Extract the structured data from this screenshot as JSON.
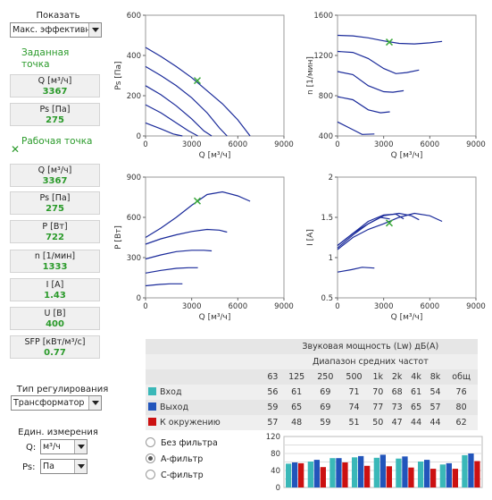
{
  "sidebar": {
    "show_label": "Показать",
    "show_select": "Макс. эффективн",
    "target_point": "Заданная точка",
    "target": [
      {
        "label": "Q [м³/ч]",
        "value": "3367"
      },
      {
        "label": "Ps [Па]",
        "value": "275"
      }
    ],
    "work_point": "Рабочая точка",
    "work_marker": "✕",
    "work": [
      {
        "label": "Q [м³/ч]",
        "value": "3367"
      },
      {
        "label": "Ps [Па]",
        "value": "275"
      },
      {
        "label": "P [Вт]",
        "value": "722"
      },
      {
        "label": "n [1/мин]",
        "value": "1333"
      },
      {
        "label": "I [A]",
        "value": "1.43"
      },
      {
        "label": "U [B]",
        "value": "400"
      },
      {
        "label": "SFP [кВт/м³/с]",
        "value": "0.77"
      }
    ],
    "reg_label": "Тип регулирования",
    "reg_select": "Трансформатор",
    "units_label": "Един. измерения",
    "q_label": "Q:",
    "q_unit": "м³/ч",
    "ps_label": "Ps:",
    "ps_unit": "Па"
  },
  "colors": {
    "curve": "#1a2a9a",
    "marker": "#3aa83a",
    "inlet": "#3ab8b8",
    "outlet": "#2255bb",
    "surround": "#cc1111"
  },
  "chart_data": [
    {
      "type": "line",
      "ylabel": "Ps [Па]",
      "xlabel": "Q [м³/ч]",
      "xlim": [
        0,
        9000
      ],
      "ylim": [
        0,
        600
      ],
      "xticks": [
        "0",
        "3000",
        "6000",
        "9000"
      ],
      "yticks": [
        "0",
        "200",
        "400",
        "600"
      ],
      "series": [
        {
          "x": [
            0,
            1000,
            2000,
            3000,
            4000,
            5000,
            6000,
            6800
          ],
          "y": [
            440,
            395,
            345,
            290,
            225,
            160,
            80,
            0
          ]
        },
        {
          "x": [
            0,
            1000,
            2000,
            3000,
            4000,
            4800,
            5300
          ],
          "y": [
            345,
            300,
            250,
            190,
            115,
            40,
            0
          ]
        },
        {
          "x": [
            0,
            1000,
            2000,
            3000,
            3800,
            4300
          ],
          "y": [
            250,
            205,
            150,
            85,
            25,
            0
          ]
        },
        {
          "x": [
            0,
            1000,
            2000,
            2800,
            3400
          ],
          "y": [
            155,
            115,
            65,
            25,
            0
          ]
        },
        {
          "x": [
            0,
            1000,
            1800,
            2400
          ],
          "y": [
            65,
            35,
            10,
            0
          ]
        }
      ],
      "marker": {
        "x": 3367,
        "y": 275
      }
    },
    {
      "type": "line",
      "ylabel": "n [1/мин]",
      "xlabel": "Q [м³/ч]",
      "xlim": [
        0,
        9000
      ],
      "ylim": [
        400,
        1600
      ],
      "xticks": [
        "0",
        "3000",
        "6000",
        "9000"
      ],
      "yticks": [
        "400",
        "800",
        "1200",
        "1600"
      ],
      "series": [
        {
          "x": [
            0,
            1000,
            2000,
            3000,
            4000,
            5000,
            6000,
            6800
          ],
          "y": [
            1400,
            1395,
            1375,
            1345,
            1320,
            1315,
            1325,
            1340
          ]
        },
        {
          "x": [
            0,
            1000,
            2000,
            3000,
            3800,
            4500,
            5300
          ],
          "y": [
            1240,
            1230,
            1170,
            1070,
            1020,
            1030,
            1055
          ]
        },
        {
          "x": [
            0,
            1000,
            2000,
            3000,
            3600,
            4300
          ],
          "y": [
            1040,
            1010,
            900,
            840,
            835,
            850
          ]
        },
        {
          "x": [
            0,
            1000,
            2000,
            2800,
            3400
          ],
          "y": [
            790,
            760,
            660,
            630,
            640
          ]
        },
        {
          "x": [
            0,
            900,
            1600,
            2400
          ],
          "y": [
            540,
            470,
            415,
            420
          ]
        }
      ],
      "marker": {
        "x": 3367,
        "y": 1333
      }
    },
    {
      "type": "line",
      "ylabel": "P [Вт]",
      "xlabel": "Q [м³/ч]",
      "xlim": [
        0,
        9000
      ],
      "ylim": [
        0,
        900
      ],
      "xticks": [
        "0",
        "3000",
        "6000",
        "9000"
      ],
      "yticks": [
        "0",
        "300",
        "600",
        "900"
      ],
      "series": [
        {
          "x": [
            0,
            1000,
            2000,
            3000,
            4000,
            5000,
            6000,
            6800
          ],
          "y": [
            450,
            520,
            600,
            690,
            770,
            790,
            760,
            720
          ]
        },
        {
          "x": [
            0,
            1000,
            2000,
            3000,
            4000,
            4800,
            5300
          ],
          "y": [
            400,
            440,
            470,
            495,
            510,
            505,
            490
          ]
        },
        {
          "x": [
            0,
            1000,
            2000,
            3000,
            3800,
            4300
          ],
          "y": [
            290,
            320,
            345,
            355,
            355,
            350
          ]
        },
        {
          "x": [
            0,
            1000,
            2000,
            2800,
            3400
          ],
          "y": [
            185,
            205,
            220,
            225,
            225
          ]
        },
        {
          "x": [
            0,
            900,
            1600,
            2400
          ],
          "y": [
            90,
            100,
            105,
            105
          ]
        }
      ],
      "marker": {
        "x": 3367,
        "y": 722
      }
    },
    {
      "type": "line",
      "ylabel": "I [A]",
      "xlabel": "Q [м³/ч]",
      "xlim": [
        0,
        9000
      ],
      "ylim": [
        0.5,
        2
      ],
      "xticks": [
        "0",
        "3000",
        "6000",
        "9000"
      ],
      "yticks": [
        "0.5",
        "1",
        "1.5",
        "2"
      ],
      "series": [
        {
          "x": [
            0,
            1000,
            2000,
            3000,
            4000,
            5000,
            6000,
            6800
          ],
          "y": [
            1.1,
            1.25,
            1.35,
            1.42,
            1.5,
            1.55,
            1.52,
            1.45
          ]
        },
        {
          "x": [
            0,
            1000,
            2000,
            3000,
            4000,
            4800,
            5300
          ],
          "y": [
            1.12,
            1.28,
            1.42,
            1.52,
            1.55,
            1.52,
            1.47
          ]
        },
        {
          "x": [
            0,
            1000,
            2000,
            3000,
            3800,
            4300
          ],
          "y": [
            1.15,
            1.3,
            1.45,
            1.53,
            1.54,
            1.48
          ]
        },
        {
          "x": [
            0,
            1000,
            2000,
            2800,
            3400
          ],
          "y": [
            1.15,
            1.3,
            1.42,
            1.5,
            1.48
          ]
        },
        {
          "x": [
            0,
            900,
            1600,
            2400
          ],
          "y": [
            0.82,
            0.85,
            0.88,
            0.87
          ]
        }
      ],
      "marker": {
        "x": 3367,
        "y": 1.43
      }
    },
    {
      "type": "bar",
      "ylim": [
        0,
        120
      ],
      "yticks": [
        "0",
        "20",
        "40",
        "60",
        "80",
        "100",
        "120"
      ],
      "categories": [
        "63",
        "125",
        "250",
        "500",
        "1k",
        "2k",
        "4k",
        "8k",
        "общ"
      ],
      "series": [
        {
          "name": "Вход",
          "values": [
            56,
            61,
            69,
            71,
            70,
            68,
            61,
            54,
            76
          ]
        },
        {
          "name": "Выход",
          "values": [
            59,
            65,
            69,
            74,
            77,
            73,
            65,
            57,
            80
          ]
        },
        {
          "name": "К окружению",
          "values": [
            57,
            48,
            59,
            51,
            50,
            47,
            44,
            44,
            62
          ]
        }
      ]
    }
  ],
  "sound": {
    "title": "Звуковая мощность (Lw) дБ(A)",
    "subtitle": "Диапазон средних частот",
    "bands": [
      "63",
      "125",
      "250",
      "500",
      "1k",
      "2k",
      "4k",
      "8k",
      "общ"
    ],
    "rows": [
      {
        "name": "Вход",
        "values": [
          "56",
          "61",
          "69",
          "71",
          "70",
          "68",
          "61",
          "54",
          "76"
        ]
      },
      {
        "name": "Выход",
        "values": [
          "59",
          "65",
          "69",
          "74",
          "77",
          "73",
          "65",
          "57",
          "80"
        ]
      },
      {
        "name": "К окружению",
        "values": [
          "57",
          "48",
          "59",
          "51",
          "50",
          "47",
          "44",
          "44",
          "62"
        ]
      }
    ]
  },
  "filters": {
    "options": [
      "Без фильтра",
      "A-фильтр",
      "C-фильтр"
    ],
    "selected": 1
  }
}
